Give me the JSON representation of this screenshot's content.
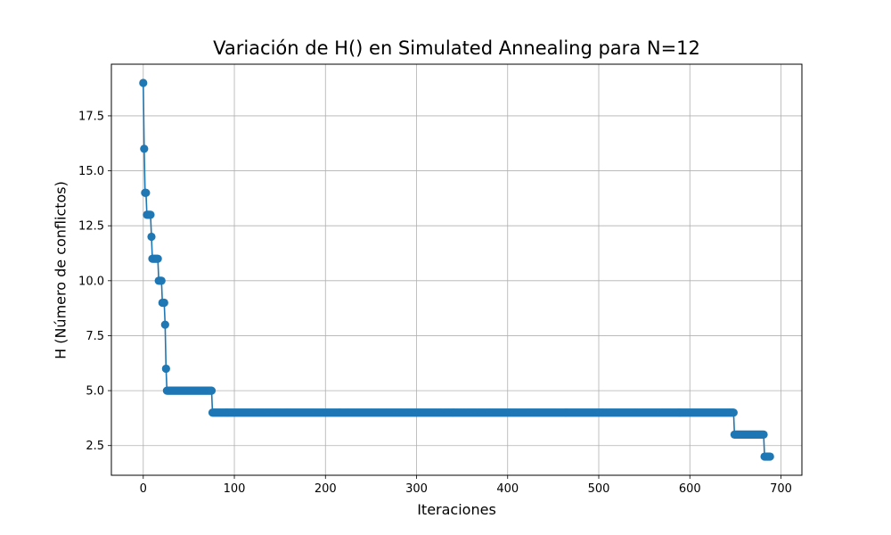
{
  "chart_data": {
    "type": "line",
    "title": "Variación de H() en Simulated Annealing para N=12",
    "xlabel": "Iteraciones",
    "ylabel": "H (Número de conflictos)",
    "xlim": [
      -35,
      723
    ],
    "ylim": [
      1.15,
      19.85
    ],
    "xticks": [
      0,
      100,
      200,
      300,
      400,
      500,
      600,
      700
    ],
    "yticks": [
      2.5,
      5.0,
      7.5,
      10.0,
      12.5,
      15.0,
      17.5
    ],
    "xtick_labels": [
      "0",
      "100",
      "200",
      "300",
      "400",
      "500",
      "600",
      "700"
    ],
    "ytick_labels": [
      "2.5",
      "5.0",
      "7.5",
      "10.0",
      "12.5",
      "15.0",
      "17.5"
    ],
    "grid": true,
    "marker": "circle",
    "color": "#1f77b4",
    "segments": [
      {
        "x_start": 0,
        "x_end": 0,
        "y": 19
      },
      {
        "x_start": 1,
        "x_end": 1,
        "y": 16
      },
      {
        "x_start": 2,
        "x_end": 3,
        "y": 14
      },
      {
        "x_start": 4,
        "x_end": 8,
        "y": 13
      },
      {
        "x_start": 9,
        "x_end": 9,
        "y": 12
      },
      {
        "x_start": 10,
        "x_end": 16,
        "y": 11
      },
      {
        "x_start": 17,
        "x_end": 20,
        "y": 10
      },
      {
        "x_start": 21,
        "x_end": 23,
        "y": 9
      },
      {
        "x_start": 24,
        "x_end": 24,
        "y": 8
      },
      {
        "x_start": 25,
        "x_end": 25,
        "y": 6
      },
      {
        "x_start": 26,
        "x_end": 75,
        "y": 5
      },
      {
        "x_start": 76,
        "x_end": 648,
        "y": 4
      },
      {
        "x_start": 649,
        "x_end": 681,
        "y": 3
      },
      {
        "x_start": 682,
        "x_end": 688,
        "y": 2
      }
    ]
  }
}
